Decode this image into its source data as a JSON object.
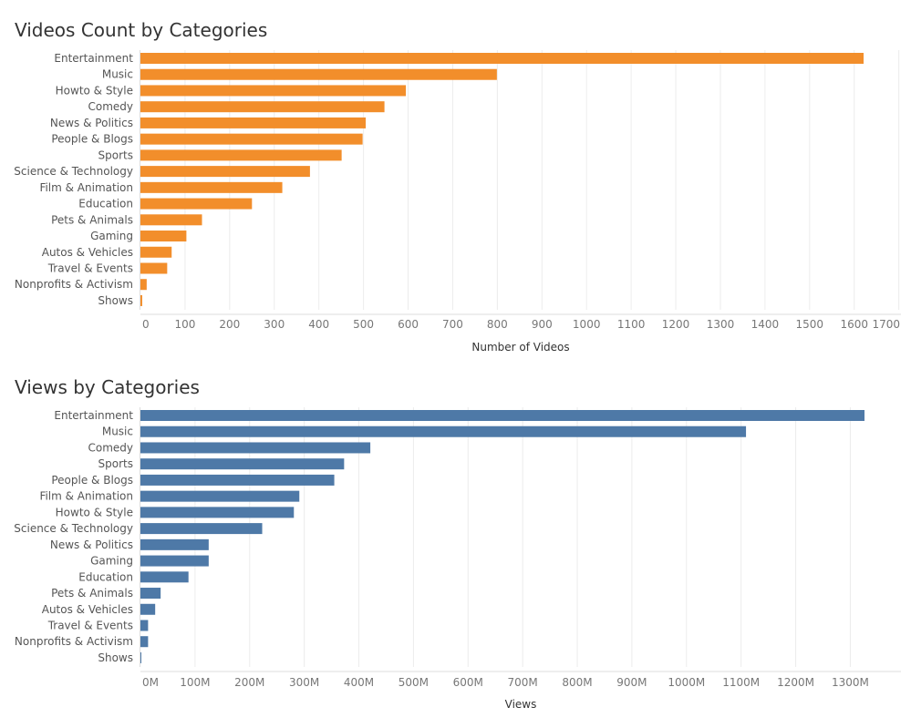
{
  "chart_data": [
    {
      "type": "bar",
      "orientation": "horizontal",
      "title": "Videos Count by Categories",
      "xlabel": "Number of Videos",
      "ylabel": "",
      "color": "#F28E2B",
      "xlim": [
        0,
        1700
      ],
      "xticks": [
        0,
        100,
        200,
        300,
        400,
        500,
        600,
        700,
        800,
        900,
        1000,
        1100,
        1200,
        1300,
        1400,
        1500,
        1600,
        1700
      ],
      "xtick_labels": [
        "0",
        "100",
        "200",
        "300",
        "400",
        "500",
        "600",
        "700",
        "800",
        "900",
        "1000",
        "1100",
        "1200",
        "1300",
        "1400",
        "1500",
        "1600",
        "1700"
      ],
      "grid": true,
      "categories": [
        "Entertainment",
        "Music",
        "Howto & Style",
        "Comedy",
        "News & Politics",
        "People & Blogs",
        "Sports",
        "Science & Technology",
        "Film & Animation",
        "Education",
        "Pets & Animals",
        "Gaming",
        "Autos & Vehicles",
        "Travel & Events",
        "Nonprofits & Activism",
        "Shows"
      ],
      "values": [
        1621,
        799,
        595,
        547,
        505,
        498,
        451,
        380,
        318,
        250,
        138,
        103,
        70,
        60,
        14,
        4
      ]
    },
    {
      "type": "bar",
      "orientation": "horizontal",
      "title": "Views by Categories",
      "xlabel": "Views",
      "ylabel": "",
      "color": "#4E79A7",
      "xlim": [
        0,
        1400
      ],
      "units": "M",
      "xticks": [
        0,
        100,
        200,
        300,
        400,
        500,
        600,
        700,
        800,
        900,
        1000,
        1100,
        1200,
        1300
      ],
      "xtick_labels": [
        "0M",
        "100M",
        "200M",
        "300M",
        "400M",
        "500M",
        "600M",
        "700M",
        "800M",
        "900M",
        "1000M",
        "1100M",
        "1200M",
        "1300M"
      ],
      "grid": true,
      "categories": [
        "Entertainment",
        "Music",
        "Comedy",
        "Sports",
        "People & Blogs",
        "Film & Animation",
        "Howto & Style",
        "Science & Technology",
        "News & Politics",
        "Gaming",
        "Education",
        "Pets & Animals",
        "Autos & Vehicles",
        "Travel & Events",
        "Nonprofits & Activism",
        "Shows"
      ],
      "values": [
        1326,
        1109,
        421,
        373,
        355,
        291,
        281,
        223,
        125,
        125,
        88,
        37,
        27,
        14,
        14,
        0.5
      ]
    }
  ]
}
